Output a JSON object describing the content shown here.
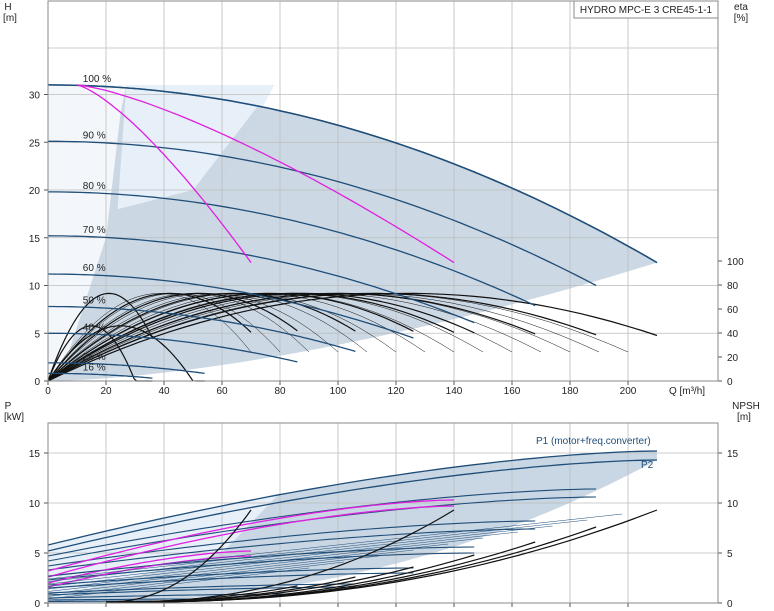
{
  "chart_data": [
    {
      "type": "line",
      "panel": "head",
      "title": "HYDRO MPC-E 3 CRE45-1-1",
      "xlabel": "Q [m³/h]",
      "ylabel_left": "H\n[m]",
      "ylabel_right": "eta\n[%]",
      "xlim": [
        0,
        220
      ],
      "ylim_left": [
        0,
        35
      ],
      "ylim_right": [
        0,
        117
      ],
      "xticks": [
        0,
        20,
        40,
        60,
        80,
        100,
        120,
        140,
        160,
        180,
        200
      ],
      "xtick_labels": [
        "0",
        "20",
        "40",
        "60",
        "80",
        "100",
        "120",
        "140",
        "160",
        "180",
        "200",
        "Q [m³/h]"
      ],
      "yticks_left": [
        0,
        5,
        10,
        15,
        20,
        25,
        30
      ],
      "yticks_right": [
        0,
        20,
        40,
        60,
        80,
        100
      ],
      "grid": true,
      "speed_curves": [
        {
          "name": "100 %",
          "h0": 31.0,
          "qmax": 210,
          "hend": 12.4
        },
        {
          "name": "90 %",
          "h0": 25.1,
          "qmax": 189,
          "hend": 10.0
        },
        {
          "name": "80 %",
          "h0": 19.8,
          "qmax": 168,
          "hend": 7.9
        },
        {
          "name": "70 %",
          "h0": 15.2,
          "qmax": 147,
          "hend": 6.1
        },
        {
          "name": "60 %",
          "h0": 11.2,
          "qmax": 126,
          "hend": 4.5
        },
        {
          "name": "50 %",
          "h0": 7.8,
          "qmax": 106,
          "hend": 3.1
        },
        {
          "name": "40 %",
          "h0": 5.0,
          "qmax": 86,
          "hend": 2.0
        },
        {
          "name": "25 %",
          "h0": 1.9,
          "qmax": 54,
          "hend": 0.8
        },
        {
          "name": "16 %",
          "h0": 0.8,
          "qmax": 36,
          "hend": 0.3
        }
      ],
      "magenta_curves": [
        {
          "q0": 10,
          "h0": 31.0,
          "qend": 70,
          "hend": 12.4
        },
        {
          "q0": 10,
          "h0": 31.0,
          "qend": 140,
          "hend": 12.4
        }
      ],
      "eta_peaks": [
        {
          "qmax": 36,
          "peak": 73,
          "qpeak": 21
        },
        {
          "qmax": 54,
          "peak": 46,
          "qpeak": 25
        },
        {
          "qmax": 36,
          "peak": 46,
          "qpeak": 15
        },
        {
          "qmax": 70,
          "peak": 73,
          "qpeak": 42
        },
        {
          "qmax": 86,
          "peak": 73,
          "qpeak": 52
        },
        {
          "qmax": 106,
          "peak": 73,
          "qpeak": 64
        },
        {
          "qmax": 126,
          "peak": 73,
          "qpeak": 76
        },
        {
          "qmax": 140,
          "peak": 73,
          "qpeak": 84
        },
        {
          "qmax": 147,
          "peak": 73,
          "qpeak": 88
        },
        {
          "qmax": 168,
          "peak": 73,
          "qpeak": 100
        },
        {
          "qmax": 189,
          "peak": 73,
          "qpeak": 112
        },
        {
          "qmax": 210,
          "peak": 73,
          "qpeak": 124
        }
      ]
    },
    {
      "type": "line",
      "panel": "power",
      "xlim": [
        0,
        220
      ],
      "ylabel_left": "P\n[kW]",
      "ylabel_right": "NPSH\n[m]",
      "ylim_left": [
        0,
        18.5
      ],
      "ylim_right": [
        0,
        18.5
      ],
      "yticks_left": [
        0,
        5,
        10,
        15
      ],
      "yticks_right": [
        0,
        5,
        10,
        15
      ],
      "grid": true,
      "series": [
        {
          "name": "P1 (motor+freq.converter)",
          "p0": 5.8,
          "pend": 15.2,
          "qmax": 210
        },
        {
          "name": "P2",
          "p0": 5.2,
          "pend": 14.3,
          "qmax": 210
        }
      ],
      "power_curves": [
        {
          "p0": 4.7,
          "pend": 11.4,
          "qmax": 189
        },
        {
          "p0": 4.2,
          "pend": 10.6,
          "qmax": 189
        },
        {
          "p0": 3.7,
          "pend": 8.2,
          "qmax": 168
        },
        {
          "p0": 3.3,
          "pend": 7.4,
          "qmax": 168
        },
        {
          "p0": 2.7,
          "pend": 5.6,
          "qmax": 147
        },
        {
          "p0": 2.3,
          "pend": 5.0,
          "qmax": 147
        },
        {
          "p0": 1.8,
          "pend": 3.5,
          "qmax": 126
        },
        {
          "p0": 1.5,
          "pend": 3.0,
          "qmax": 126
        },
        {
          "p0": 1.0,
          "pend": 1.9,
          "qmax": 106
        },
        {
          "p0": 0.8,
          "pend": 1.6,
          "qmax": 106
        },
        {
          "p0": 0.5,
          "pend": 0.9,
          "qmax": 86
        },
        {
          "p0": 0.3,
          "pend": 0.4,
          "qmax": 54
        },
        {
          "p0": 0.15,
          "pend": 0.2,
          "qmax": 36
        }
      ],
      "magenta_power": [
        {
          "q0": 0,
          "p0": 3.2,
          "qend": 140,
          "pend": 10.3
        },
        {
          "q0": 0,
          "p0": 2.6,
          "qend": 140,
          "pend": 9.7
        },
        {
          "q0": 0,
          "p0": 2.0,
          "qend": 70,
          "pend": 5.2
        },
        {
          "q0": 0,
          "p0": 1.6,
          "qend": 70,
          "pend": 4.7
        }
      ],
      "npsh_curves": [
        {
          "qstart": 20,
          "qmax": 70,
          "nend": 9.3
        },
        {
          "qstart": 25,
          "qmax": 140,
          "nend": 9.3
        },
        {
          "qstart": 30,
          "qmax": 210,
          "nend": 9.3
        },
        {
          "qstart": 30,
          "qmax": 189,
          "nend": 7.6
        },
        {
          "qstart": 30,
          "qmax": 168,
          "nend": 6.1
        },
        {
          "qstart": 30,
          "qmax": 147,
          "nend": 4.8
        },
        {
          "qstart": 25,
          "qmax": 126,
          "nend": 3.6
        },
        {
          "qstart": 25,
          "qmax": 106,
          "nend": 2.6
        },
        {
          "qstart": 20,
          "qmax": 86,
          "nend": 1.7
        }
      ]
    }
  ],
  "colors": {
    "curve_blue": "#1f4e79",
    "magenta": "#e020e0",
    "region_fill": "#c9d6e3",
    "light_fill": "#e7eff8",
    "grid": "#bdbdbd",
    "black": "#111111"
  }
}
